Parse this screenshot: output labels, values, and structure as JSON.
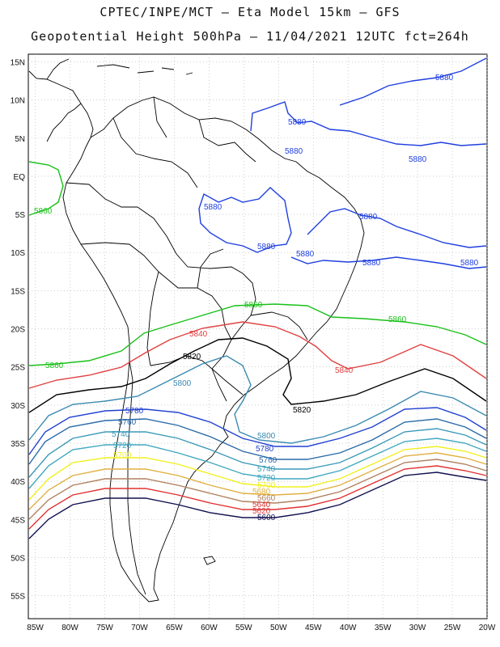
{
  "header": {
    "line1": "CPTEC/INPE/MCT –  Eta Model 15km – GFS",
    "line2": "Geopotential Height 500hPa – 11/04/2021 12UTC fct=264h"
  },
  "axes": {
    "lat_labels": [
      "15N",
      "10N",
      "5N",
      "EQ",
      "5S",
      "10S",
      "15S",
      "20S",
      "25S",
      "30S",
      "35S",
      "40S",
      "45S",
      "50S",
      "55S"
    ],
    "lon_labels": [
      "85W",
      "80W",
      "75W",
      "70W",
      "65W",
      "60W",
      "55W",
      "50W",
      "45W",
      "40W",
      "35W",
      "30W",
      "25W",
      "20W"
    ],
    "lat_range": [
      -58,
      16
    ],
    "lon_range": [
      -86,
      -20
    ]
  },
  "colors": {
    "c5880": "#1f3fe0",
    "c5860": "#18c018",
    "c5840": "#e04040",
    "c5820": "#000000",
    "c5800": "#3a8ab0",
    "c5780": "#2040d0",
    "c5760": "#2a6aa8",
    "c5740": "#3a9ab8",
    "c5720": "#40a8c0",
    "c5700": "#f0f020",
    "c5680": "#e0b040",
    "c5660": "#b08060",
    "c5640": "#e03030",
    "c5620": "#101050",
    "coast": "#000000",
    "grid": "#b0b0b0"
  },
  "contour_labels": {
    "l5880a": "5880",
    "l5880b": "5880",
    "l5880c": "5880",
    "l5880d": "5880",
    "l5880e": "5880",
    "l5880f": "5880",
    "l5880g": "5880",
    "l5880h": "5880",
    "l5880i": "5880",
    "l5860a": "5860",
    "l5860b": "5860",
    "l5860c": "5860",
    "l5860d": "5860",
    "l5840a": "5840",
    "l5840b": "5840",
    "l5820a": "5820",
    "l5820b": "5820",
    "l5800a": "5800",
    "l5800b": "5800",
    "l5780a": "5780",
    "l5780b": "5780",
    "l5760a": "5760",
    "l5760b": "5760",
    "l5740a": "5740",
    "l5740b": "5740",
    "l5720a": "5720",
    "l5720b": "5720",
    "l5700a": "5700",
    "l5700b": "5700",
    "l5680": "5680",
    "l5660": "5660",
    "l5640": "5640",
    "l5620": "5620",
    "l5600": "5600"
  }
}
